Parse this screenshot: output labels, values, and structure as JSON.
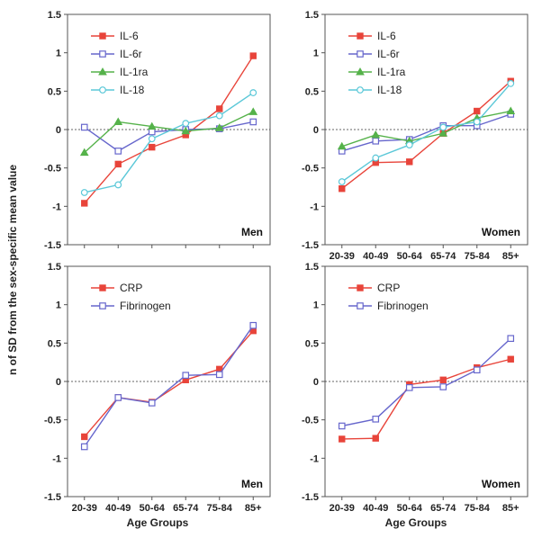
{
  "figure": {
    "ylabel": "n of SD from the sex-specific mean value",
    "xlabel": "Age Groups"
  },
  "chart_data": [
    {
      "type": "line",
      "panel_label": "Men",
      "categories": [
        "20-39",
        "40-49",
        "50-64",
        "65-74",
        "75-84",
        "85+"
      ],
      "ylim": [
        -1.5,
        1.5
      ],
      "yticks": [
        "1.5",
        "1",
        "0.5",
        "0",
        "-0.5",
        "-1",
        "-1.5"
      ],
      "reference_line": 0,
      "legend_position": "top-left",
      "series": [
        {
          "name": "IL-6",
          "color": "#e8443a",
          "marker": "filled-square",
          "values": [
            -0.96,
            -0.45,
            -0.23,
            -0.07,
            0.27,
            0.96
          ]
        },
        {
          "name": "IL-6r",
          "color": "#6666cc",
          "marker": "open-square",
          "values": [
            0.03,
            -0.28,
            -0.03,
            0.0,
            0.01,
            0.1
          ]
        },
        {
          "name": "IL-1ra",
          "color": "#55b24a",
          "marker": "filled-triangle",
          "values": [
            -0.3,
            0.1,
            0.04,
            -0.02,
            0.02,
            0.23
          ]
        },
        {
          "name": "IL-18",
          "color": "#5bc8d8",
          "marker": "open-circle",
          "values": [
            -0.82,
            -0.72,
            -0.12,
            0.08,
            0.18,
            0.48
          ]
        }
      ]
    },
    {
      "type": "line",
      "panel_label": "Women",
      "categories": [
        "20-39",
        "40-49",
        "50-64",
        "65-74",
        "75-84",
        "85+"
      ],
      "ylim": [
        -1.5,
        1.5
      ],
      "yticks": [
        "1.5",
        "1",
        "0.5",
        "0",
        "-0.5",
        "-1",
        "-1.5"
      ],
      "reference_line": 0,
      "legend_position": "top-left",
      "series": [
        {
          "name": "IL-6",
          "color": "#e8443a",
          "marker": "filled-square",
          "values": [
            -0.77,
            -0.43,
            -0.42,
            -0.05,
            0.24,
            0.63
          ]
        },
        {
          "name": "IL-6r",
          "color": "#6666cc",
          "marker": "open-square",
          "values": [
            -0.28,
            -0.15,
            -0.13,
            0.05,
            0.05,
            0.2
          ]
        },
        {
          "name": "IL-1ra",
          "color": "#55b24a",
          "marker": "filled-triangle",
          "values": [
            -0.22,
            -0.07,
            -0.15,
            -0.05,
            0.15,
            0.24
          ]
        },
        {
          "name": "IL-18",
          "color": "#5bc8d8",
          "marker": "open-circle",
          "values": [
            -0.68,
            -0.37,
            -0.2,
            0.03,
            0.1,
            0.6
          ]
        }
      ]
    },
    {
      "type": "line",
      "panel_label": "Men",
      "categories": [
        "20-39",
        "40-49",
        "50-64",
        "65-74",
        "75-84",
        "85+"
      ],
      "ylim": [
        -1.5,
        1.5
      ],
      "yticks": [
        "1.5",
        "1",
        "0.5",
        "0",
        "-0.5",
        "-1",
        "-1.5"
      ],
      "reference_line": 0,
      "legend_position": "top-left",
      "series": [
        {
          "name": "CRP",
          "color": "#e8443a",
          "marker": "filled-square",
          "values": [
            -0.72,
            -0.21,
            -0.27,
            0.02,
            0.16,
            0.66
          ]
        },
        {
          "name": "Fibrinogen",
          "color": "#6666cc",
          "marker": "open-square",
          "values": [
            -0.85,
            -0.21,
            -0.28,
            0.08,
            0.09,
            0.73
          ]
        }
      ]
    },
    {
      "type": "line",
      "panel_label": "Women",
      "categories": [
        "20-39",
        "40-49",
        "50-64",
        "65-74",
        "75-84",
        "85+"
      ],
      "ylim": [
        -1.5,
        1.5
      ],
      "yticks": [
        "1.5",
        "1",
        "0.5",
        "0",
        "-0.5",
        "-1",
        "-1.5"
      ],
      "reference_line": 0,
      "legend_position": "top-left",
      "series": [
        {
          "name": "CRP",
          "color": "#e8443a",
          "marker": "filled-square",
          "values": [
            -0.75,
            -0.74,
            -0.04,
            0.02,
            0.18,
            0.29
          ]
        },
        {
          "name": "Fibrinogen",
          "color": "#6666cc",
          "marker": "open-square",
          "values": [
            -0.58,
            -0.49,
            -0.08,
            -0.07,
            0.15,
            0.56
          ]
        }
      ]
    }
  ]
}
